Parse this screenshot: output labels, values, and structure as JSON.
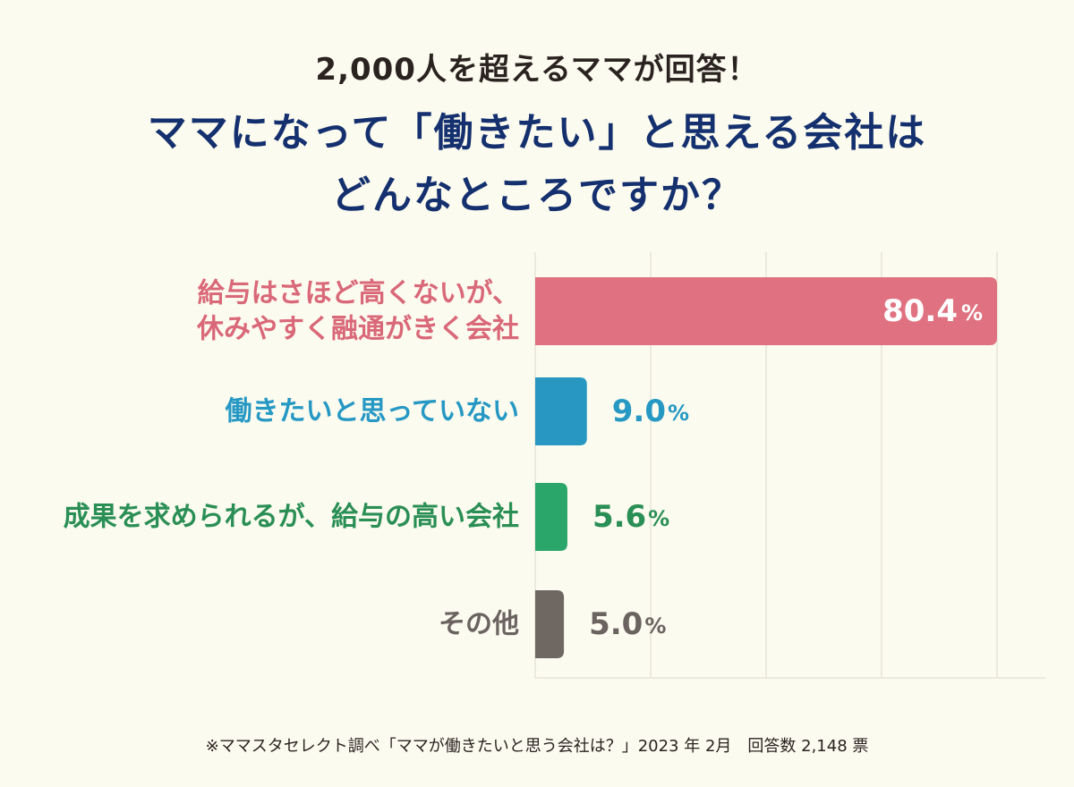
{
  "header": {
    "subtitle": "2,000人を超えるママが回答！",
    "title_line1": "ママになって「働きたい」と思える会社は",
    "title_line2": "どんなところですか？"
  },
  "chart_data": {
    "type": "bar",
    "orientation": "horizontal",
    "xlim": [
      0,
      80.4
    ],
    "grid": true,
    "categories": [
      [
        "給与はさほど高くないが、",
        "休みやすく融通がきく会社"
      ],
      [
        "働きたいと思っていない"
      ],
      [
        "成果を求められるが、給与の高い会社"
      ],
      [
        "その他"
      ]
    ],
    "values": [
      80.4,
      9.0,
      5.6,
      5.0
    ],
    "value_labels": [
      "80.4",
      "9.0",
      "5.6",
      "5.0"
    ],
    "unit": "%",
    "colors": [
      "#e07180",
      "#2898c2",
      "#2ba66a",
      "#6e6762"
    ],
    "label_colors": [
      "#d96878",
      "#2598c4",
      "#2a8f55",
      "#6a6360"
    ],
    "value_label_colors": [
      "#ffffff",
      "#2598c4",
      "#2a8f55",
      "#6a6360"
    ]
  },
  "footer": {
    "note": "※ママスタセレクト調べ「ママが働きたいと思う会社は？」2023 年 2月　回答数 2,148 票"
  }
}
